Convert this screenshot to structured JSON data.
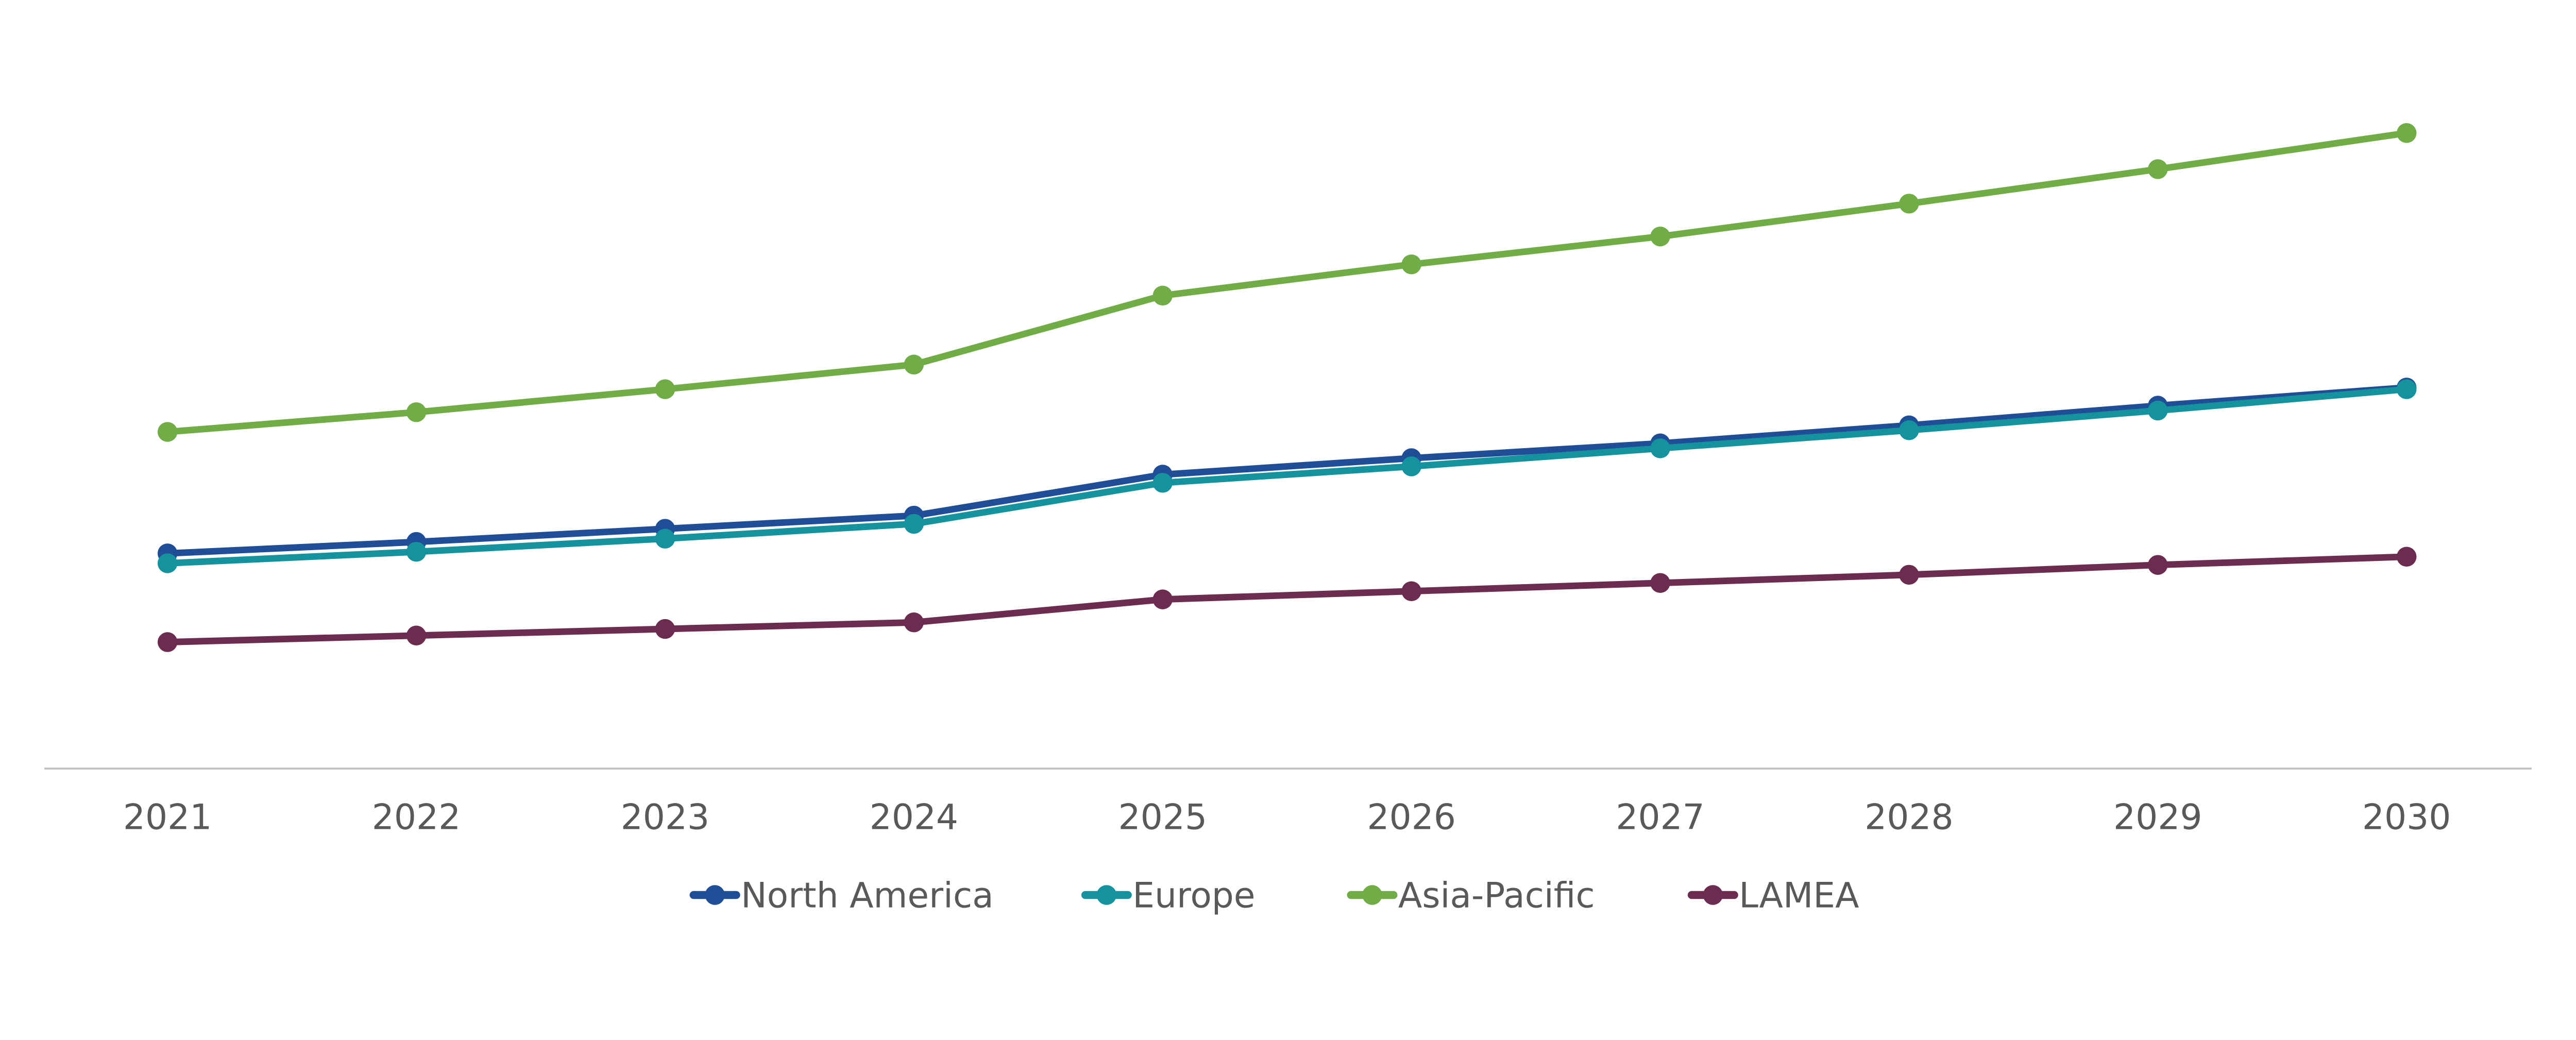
{
  "chart_data": {
    "type": "line",
    "title": "",
    "xlabel": "",
    "ylabel": "",
    "y_axis_visible": false,
    "y_units_note": "no y-axis printed; values are relative estimates",
    "ylim": [
      0,
      468
    ],
    "grid": false,
    "legend_placement": "bottom",
    "categories": [
      "2021",
      "2022",
      "2023",
      "2024",
      "2025",
      "2026",
      "2027",
      "2028",
      "2029",
      "2030"
    ],
    "series": [
      {
        "name": "North America",
        "color": "#1F4E96",
        "values": [
          131,
          138,
          146,
          154,
          179,
          189,
          198,
          209,
          221,
          232
        ]
      },
      {
        "name": "Europe",
        "color": "#14939F",
        "values": [
          125,
          132,
          140,
          149,
          174,
          184,
          195,
          206,
          218,
          231
        ]
      },
      {
        "name": "Asia-Pacific",
        "color": "#70AD47",
        "values": [
          205,
          217,
          231,
          246,
          288,
          307,
          324,
          344,
          365,
          387
        ]
      },
      {
        "name": "LAMEA",
        "color": "#6B2C50",
        "values": [
          77,
          81,
          85,
          89,
          103,
          108,
          113,
          118,
          124,
          129
        ]
      }
    ],
    "axis_color": "#BFBFBF",
    "text_color": "#595959"
  }
}
